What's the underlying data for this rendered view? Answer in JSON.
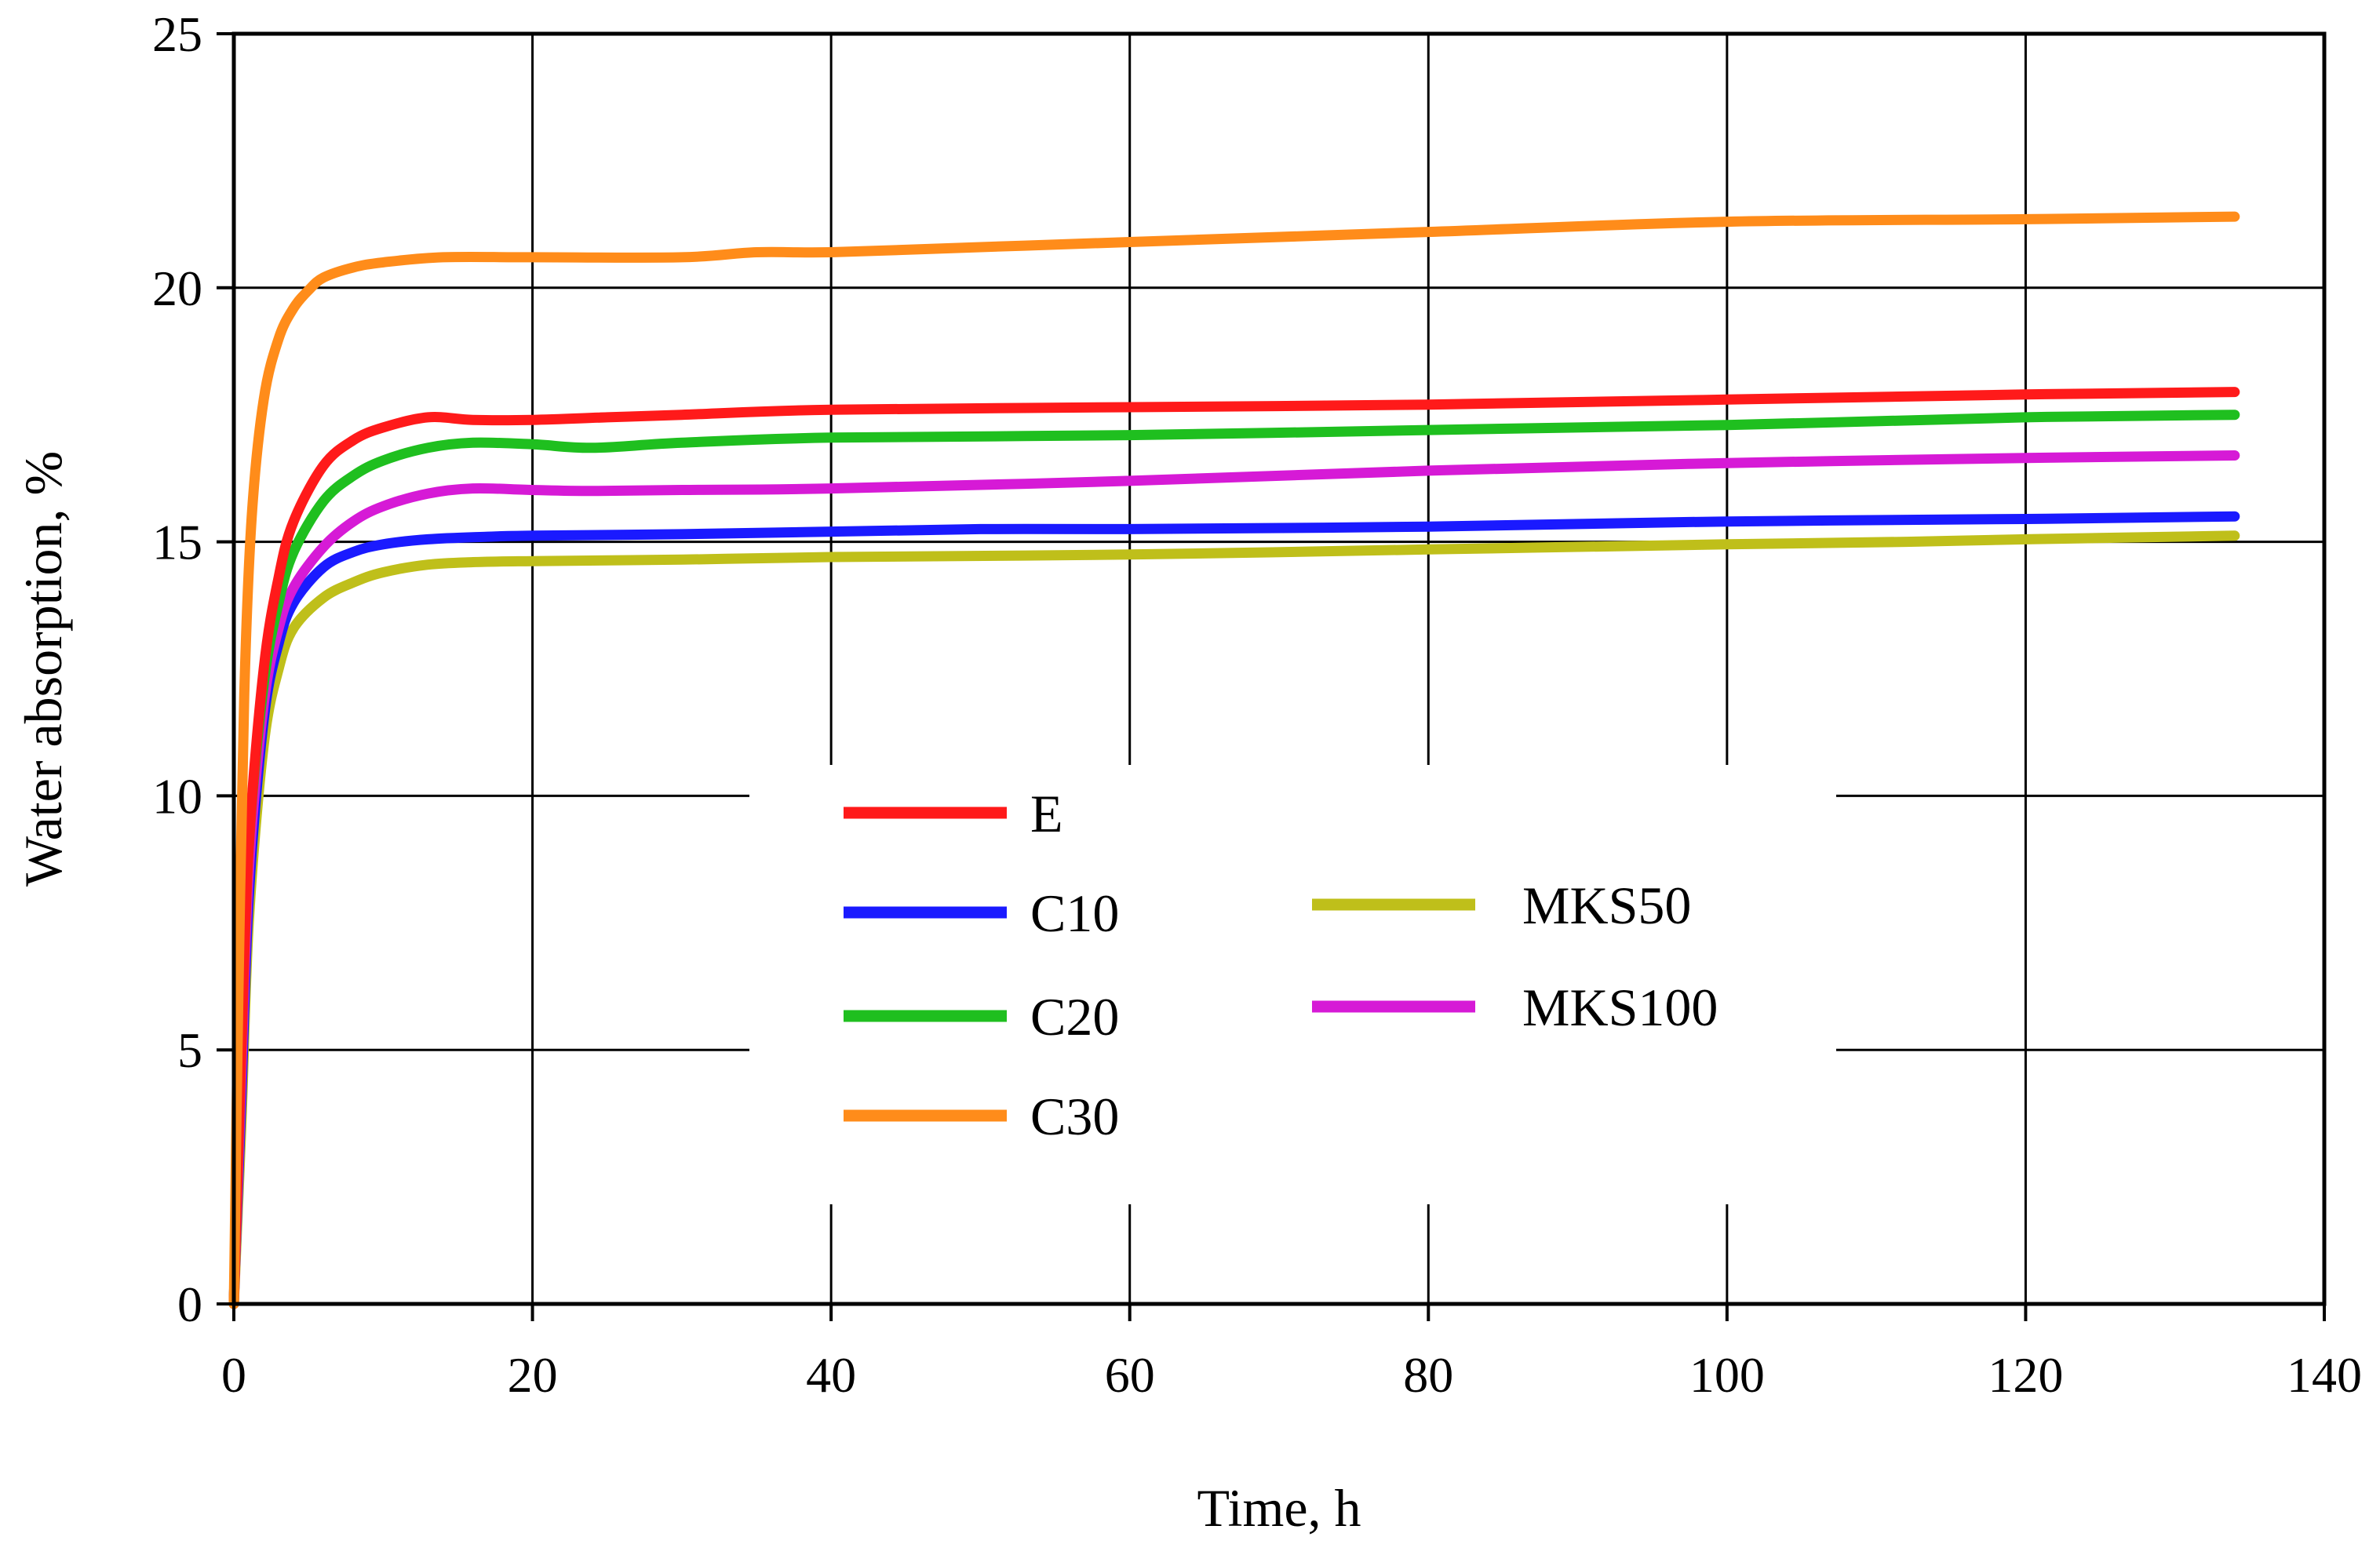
{
  "chart_data": {
    "type": "line",
    "title": "",
    "xlabel": "Time, h",
    "ylabel": "Water absorption, %",
    "xlim": [
      0,
      140
    ],
    "ylim": [
      0,
      25
    ],
    "xticks": [
      0,
      20,
      40,
      60,
      80,
      100,
      120,
      140
    ],
    "yticks": [
      0,
      5,
      10,
      15,
      20,
      25
    ],
    "grid": true,
    "legend_position": "center",
    "series": [
      {
        "name": "E",
        "color": "#ff1a1a",
        "points": [
          [
            0,
            0
          ],
          [
            0.5,
            5
          ],
          [
            1,
            9
          ],
          [
            2,
            12.5
          ],
          [
            3,
            14.3
          ],
          [
            4,
            15.4
          ],
          [
            6,
            16.5
          ],
          [
            8,
            17
          ],
          [
            10,
            17.25
          ],
          [
            13,
            17.45
          ],
          [
            16,
            17.4
          ],
          [
            20,
            17.4
          ],
          [
            25,
            17.45
          ],
          [
            30,
            17.5
          ],
          [
            40,
            17.6
          ],
          [
            60,
            17.65
          ],
          [
            80,
            17.7
          ],
          [
            100,
            17.8
          ],
          [
            120,
            17.9
          ],
          [
            134,
            17.95
          ]
        ]
      },
      {
        "name": "C10",
        "color": "#1a1aff",
        "points": [
          [
            0,
            0.1
          ],
          [
            0.5,
            4
          ],
          [
            1,
            8
          ],
          [
            2,
            11.5
          ],
          [
            3,
            13
          ],
          [
            4,
            13.8
          ],
          [
            6,
            14.5
          ],
          [
            8,
            14.8
          ],
          [
            10,
            14.95
          ],
          [
            13,
            15.05
          ],
          [
            17,
            15.1
          ],
          [
            20,
            15.12
          ],
          [
            30,
            15.15
          ],
          [
            40,
            15.2
          ],
          [
            50,
            15.25
          ],
          [
            60,
            15.25
          ],
          [
            80,
            15.3
          ],
          [
            100,
            15.4
          ],
          [
            120,
            15.45
          ],
          [
            134,
            15.5
          ]
        ]
      },
      {
        "name": "C20",
        "color": "#1fbf1f",
        "points": [
          [
            0,
            0
          ],
          [
            0.5,
            5
          ],
          [
            1,
            9
          ],
          [
            2,
            12.2
          ],
          [
            3,
            13.8
          ],
          [
            4,
            14.8
          ],
          [
            6,
            15.8
          ],
          [
            8,
            16.3
          ],
          [
            10,
            16.6
          ],
          [
            13,
            16.85
          ],
          [
            16,
            16.95
          ],
          [
            20,
            16.92
          ],
          [
            24,
            16.85
          ],
          [
            30,
            16.95
          ],
          [
            40,
            17.05
          ],
          [
            60,
            17.1
          ],
          [
            80,
            17.2
          ],
          [
            100,
            17.3
          ],
          [
            120,
            17.45
          ],
          [
            134,
            17.5
          ]
        ]
      },
      {
        "name": "C30",
        "color": "#ff8c1a",
        "points": [
          [
            0,
            0
          ],
          [
            0.3,
            6
          ],
          [
            0.7,
            12
          ],
          [
            1.2,
            15.5
          ],
          [
            2,
            17.8
          ],
          [
            3,
            19
          ],
          [
            4,
            19.6
          ],
          [
            5,
            19.95
          ],
          [
            6,
            20.2
          ],
          [
            8,
            20.4
          ],
          [
            10,
            20.5
          ],
          [
            14,
            20.6
          ],
          [
            20,
            20.6
          ],
          [
            30,
            20.6
          ],
          [
            35,
            20.7
          ],
          [
            40,
            20.7
          ],
          [
            50,
            20.8
          ],
          [
            60,
            20.9
          ],
          [
            80,
            21.1
          ],
          [
            100,
            21.3
          ],
          [
            120,
            21.35
          ],
          [
            134,
            21.4
          ]
        ]
      },
      {
        "name": "MKS50",
        "color": "#bfbf1a",
        "points": [
          [
            0,
            0
          ],
          [
            0.5,
            3.5
          ],
          [
            1,
            7.5
          ],
          [
            2,
            11
          ],
          [
            3,
            12.5
          ],
          [
            4,
            13.3
          ],
          [
            6,
            13.9
          ],
          [
            8,
            14.2
          ],
          [
            10,
            14.4
          ],
          [
            13,
            14.55
          ],
          [
            16,
            14.6
          ],
          [
            20,
            14.62
          ],
          [
            30,
            14.65
          ],
          [
            40,
            14.7
          ],
          [
            60,
            14.75
          ],
          [
            80,
            14.85
          ],
          [
            100,
            14.95
          ],
          [
            112,
            15
          ],
          [
            120,
            15.05
          ],
          [
            134,
            15.12
          ]
        ]
      },
      {
        "name": "MKS100",
        "color": "#d61ad6",
        "points": [
          [
            0,
            0
          ],
          [
            0.5,
            4.5
          ],
          [
            1,
            8.5
          ],
          [
            2,
            11.8
          ],
          [
            3,
            13.3
          ],
          [
            4,
            14.1
          ],
          [
            6,
            14.9
          ],
          [
            8,
            15.4
          ],
          [
            10,
            15.7
          ],
          [
            13,
            15.95
          ],
          [
            16,
            16.05
          ],
          [
            20,
            16.02
          ],
          [
            24,
            16
          ],
          [
            30,
            16.02
          ],
          [
            40,
            16.05
          ],
          [
            60,
            16.2
          ],
          [
            80,
            16.4
          ],
          [
            100,
            16.55
          ],
          [
            120,
            16.65
          ],
          [
            134,
            16.7
          ]
        ]
      }
    ]
  }
}
